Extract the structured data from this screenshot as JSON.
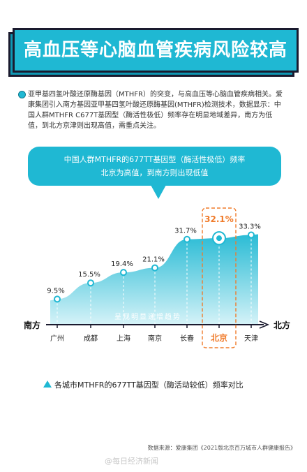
{
  "title": "高血压等心脑血管疾病风险较高",
  "intro": "亚甲基四氢叶酸还原酶基因（MTHFR）的突变，与高血压等心脑血管疾病相关。爱康集团引入南方基因亚甲基四氢叶酸还原酶基因(MTHFR)检测技术，数据显示：中国人群MTHFR C677T基因型（酶活性极低）频率存在明显地域差异，南方为低值，到北方京津则出现高值，需重点关注。",
  "callout": {
    "line1": "中国人群MTHFR的677TT基因型（酶活性极低）频率",
    "line2": "北京为高值，到南方则出现低值"
  },
  "chart_data": {
    "type": "area",
    "categories": [
      "广州",
      "成都",
      "上海",
      "南京",
      "长春",
      "北京",
      "天津"
    ],
    "values": [
      9.5,
      15.5,
      19.4,
      21.1,
      31.7,
      32.1,
      33.3
    ],
    "value_labels": [
      "9.5%",
      "15.5%",
      "19.4%",
      "21.1%",
      "31.7%",
      "32.1%",
      "33.3%"
    ],
    "highlight_category": "北京",
    "axis_left_label": "南方",
    "axis_right_label": "北方",
    "trend_label": "呈现明显递增趋势",
    "colors": {
      "area": "#1fb8d3",
      "highlight": "#f07b2a",
      "line": "#1fb8d3"
    }
  },
  "legend_note": "各城市MTHFR的677TT基因型（酶活动较低）频率对比",
  "source": "数据来源：爱康集团《2021版北京百万城市人群健康报告》",
  "watermark": "@每日经济新闻"
}
